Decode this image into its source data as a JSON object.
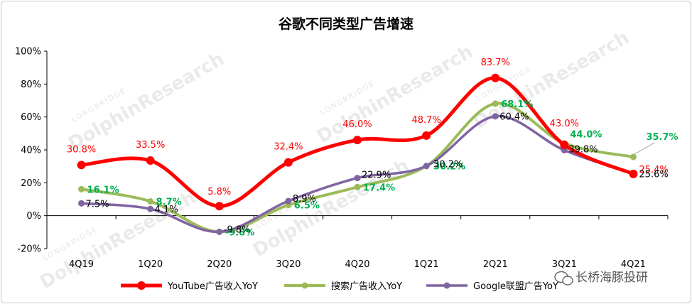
{
  "chart_data": {
    "type": "line",
    "title": "谷歌不同类型广告增速",
    "categories": [
      "4Q19",
      "1Q20",
      "2Q20",
      "3Q20",
      "4Q20",
      "1Q21",
      "2Q21",
      "3Q21",
      "4Q21"
    ],
    "ylim": [
      -20,
      100
    ],
    "yticks": [
      -20,
      0,
      20,
      40,
      60,
      80,
      100
    ],
    "ytick_labels": [
      "-20%",
      "0%",
      "20%",
      "40%",
      "60%",
      "80%",
      "100%"
    ],
    "grid": false,
    "legend_position": "bottom",
    "series": [
      {
        "name": "YouTube广告收入YoY",
        "color": "#ff0000",
        "values": [
          30.8,
          33.5,
          5.8,
          32.4,
          46.0,
          48.7,
          83.7,
          43.0,
          25.4
        ],
        "labels": [
          "30.8%",
          "33.5%",
          "5.8%",
          "32.4%",
          "46.0%",
          "48.7%",
          "83.7%",
          "43.0%",
          "25.4%"
        ]
      },
      {
        "name": "搜索广告收入YoY",
        "color": "#9bbb59",
        "label_color": "#00b050",
        "values": [
          16.1,
          8.7,
          -9.8,
          6.5,
          17.4,
          30.2,
          68.1,
          44.0,
          35.7
        ],
        "labels": [
          "16.1%",
          "8.7%",
          "-9.8%",
          "6.5%",
          "17.4%",
          "30.2%",
          "68.1%",
          "44.0%",
          "35.7%"
        ]
      },
      {
        "name": "Google联盟广告YoY",
        "color": "#8064a2",
        "label_color": "#000000",
        "values": [
          7.5,
          4.1,
          -9.8,
          8.9,
          22.9,
          30.2,
          60.4,
          39.8,
          25.6
        ],
        "labels": [
          "7.5%",
          "4.1%",
          "-9.8%",
          "8.9%",
          "22.9%",
          "30.2%",
          "60.4%",
          "39.8%",
          "25.6%"
        ]
      }
    ]
  },
  "watermark": {
    "brand": "DolphinResearch",
    "sub": "LONGBRIDGE"
  },
  "branding": {
    "text": "长桥海豚投研",
    "icon": "wechat-icon"
  }
}
